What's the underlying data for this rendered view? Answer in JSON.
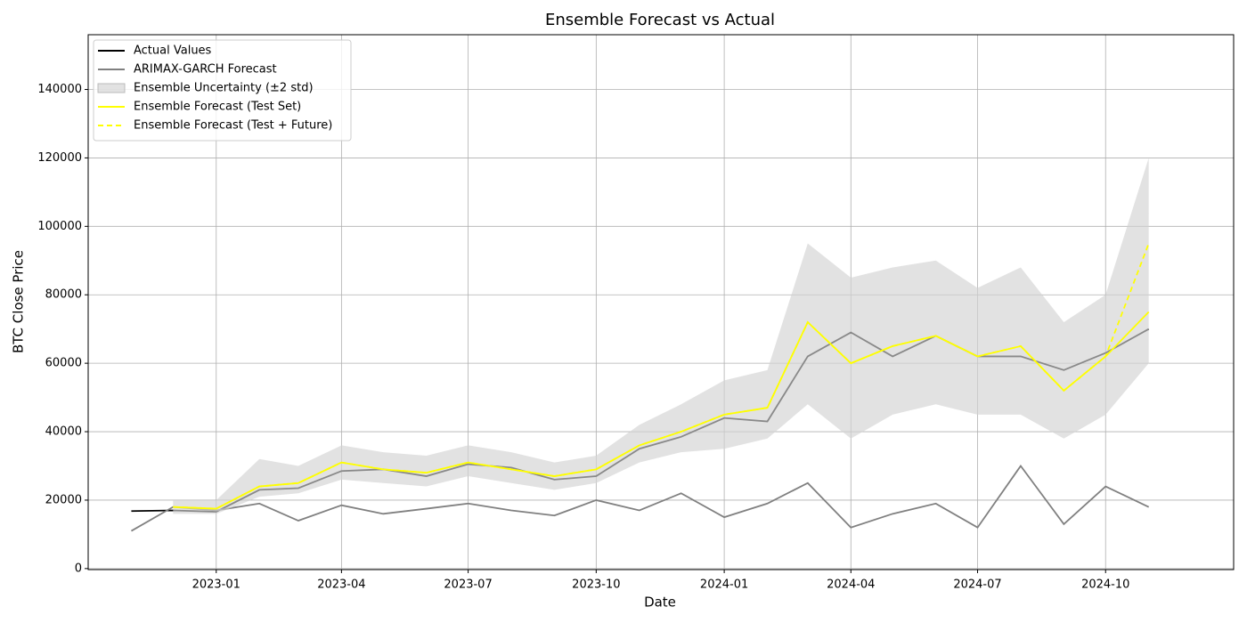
{
  "chart_data": {
    "type": "line",
    "title": "Ensemble Forecast vs Actual",
    "xlabel": "Date",
    "ylabel": "BTC Close Price",
    "x": [
      "2022-11",
      "2022-12",
      "2023-01",
      "2023-02",
      "2023-03",
      "2023-04",
      "2023-05",
      "2023-06",
      "2023-07",
      "2023-08",
      "2023-09",
      "2023-10",
      "2023-11",
      "2023-12",
      "2024-01",
      "2024-02",
      "2024-03",
      "2024-04",
      "2024-05",
      "2024-06",
      "2024-07",
      "2024-08",
      "2024-09",
      "2024-10",
      "2024-11"
    ],
    "xlim": [
      "2022-10",
      "2025-01"
    ],
    "xticks": [
      "2023-01",
      "2023-04",
      "2023-07",
      "2023-10",
      "2024-01",
      "2024-04",
      "2024-07",
      "2024-10"
    ],
    "ylim": [
      -300,
      156000
    ],
    "yticks": [
      0,
      20000,
      40000,
      60000,
      80000,
      100000,
      120000,
      140000
    ],
    "grid": true,
    "legend": "upper left",
    "series": [
      {
        "name": "Actual Values",
        "color": "#000000",
        "style": "solid",
        "values": [
          16800,
          17000,
          16600,
          23000,
          23500,
          28500,
          29000,
          27000,
          30500,
          29500,
          26000,
          27000,
          35000,
          38500,
          44000,
          43000,
          62000,
          69000,
          62000,
          68000,
          62000,
          62000,
          58000,
          63000,
          70000
        ]
      },
      {
        "name": "ARIMAX-GARCH Forecast",
        "color": "#808080",
        "style": "solid",
        "values": [
          11000,
          18000,
          17000,
          19000,
          14000,
          18500,
          16000,
          17500,
          19000,
          17000,
          15500,
          20000,
          17000,
          22000,
          15000,
          19000,
          25000,
          12000,
          16000,
          19000,
          12000,
          30000,
          13000,
          24000,
          18000
        ]
      },
      {
        "name": "Ensemble Uncertainty (±2 std)",
        "color": "#d3d3d3",
        "style": "band",
        "lower": [
          null,
          16000,
          16000,
          21000,
          22000,
          26000,
          25000,
          24000,
          27000,
          25000,
          23000,
          25000,
          31000,
          34000,
          35000,
          38000,
          48000,
          38000,
          45000,
          48000,
          45000,
          45000,
          38000,
          45000,
          60000
        ],
        "upper": [
          null,
          20000,
          20000,
          32000,
          30000,
          36000,
          34000,
          33000,
          36000,
          34000,
          31000,
          33000,
          42000,
          48000,
          55000,
          58000,
          95000,
          85000,
          88000,
          90000,
          82000,
          88000,
          72000,
          80000,
          120000
        ]
      },
      {
        "name": "Ensemble Forecast (Test Set)",
        "color": "#ffff00",
        "style": "solid",
        "values": [
          null,
          18000,
          17500,
          24000,
          25000,
          31000,
          29000,
          28000,
          31000,
          29000,
          27000,
          29000,
          36000,
          40000,
          45000,
          47000,
          72000,
          60000,
          65000,
          68000,
          62000,
          65000,
          52000,
          62000,
          75000
        ]
      },
      {
        "name": "Ensemble Forecast (Test + Future)",
        "color": "#ffff00",
        "style": "dashed",
        "values": [
          null,
          18000,
          17500,
          24000,
          25000,
          31000,
          29000,
          28000,
          31000,
          29000,
          27000,
          29000,
          36000,
          40000,
          45000,
          47000,
          72000,
          60000,
          65000,
          68000,
          62000,
          65000,
          52000,
          62000,
          95000
        ]
      }
    ]
  }
}
